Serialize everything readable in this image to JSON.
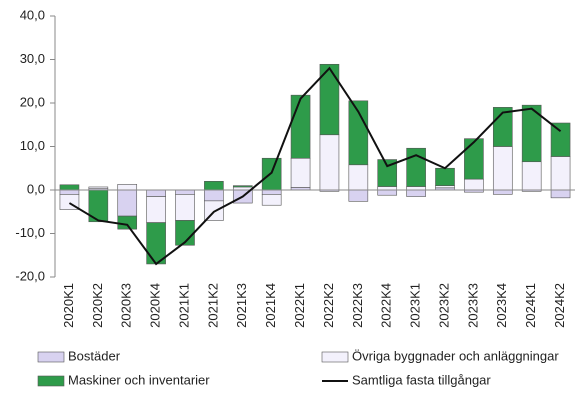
{
  "chart_data": {
    "type": "stacked_bar_line",
    "categories": [
      "2020K1",
      "2020K2",
      "2020K3",
      "2020K4",
      "2021K1",
      "2021K2",
      "2021K3",
      "2021K4",
      "2022K1",
      "2022K2",
      "2022K3",
      "2022K4",
      "2023K1",
      "2023K2",
      "2023K3",
      "2023K4",
      "2024K1",
      "2024K2"
    ],
    "series": [
      {
        "name": "Bostäder",
        "color": "#d8d2f0",
        "values": [
          -1,
          0.3,
          -6,
          -1.5,
          -1,
          -2.5,
          -3,
          -1,
          0.6,
          -0.3,
          -2.6,
          -1.2,
          -1.5,
          0.5,
          -0.5,
          -1,
          -0.3,
          -1.8
        ]
      },
      {
        "name": "Övriga byggnader och anläggningar",
        "color": "#f3f1fc",
        "values": [
          -3.5,
          0.4,
          1.3,
          -6,
          -6,
          -4.5,
          0.7,
          -2.5,
          6.7,
          12.7,
          5.8,
          0.8,
          0.8,
          0.5,
          2.5,
          10,
          6.5,
          7.7
        ]
      },
      {
        "name": "Maskiner och inventarier",
        "color": "#2e9b4a",
        "values": [
          1.2,
          -7.3,
          -3,
          -9.5,
          -5.7,
          2,
          0.3,
          7.3,
          14.5,
          16.2,
          14.7,
          6.2,
          8.8,
          4,
          9.3,
          9,
          13,
          7.7
        ]
      },
      {
        "name": "Samtliga fasta tillgångar",
        "color": "#111111",
        "type": "line",
        "values": [
          -3,
          -7,
          -8,
          -17,
          -12,
          -5,
          -1.5,
          4,
          21,
          28,
          18,
          5.5,
          8,
          5,
          11,
          17.8,
          18.7,
          13.5
        ]
      }
    ],
    "ylim": [
      -20,
      40
    ],
    "yticks": [
      {
        "value": -20,
        "label": "-20,0"
      },
      {
        "value": -10,
        "label": "-10,0"
      },
      {
        "value": 0,
        "label": "0,0"
      },
      {
        "value": 10,
        "label": "10,0"
      },
      {
        "value": 20,
        "label": "20,0"
      },
      {
        "value": 30,
        "label": "30,0"
      },
      {
        "value": 40,
        "label": "40,0"
      }
    ]
  }
}
